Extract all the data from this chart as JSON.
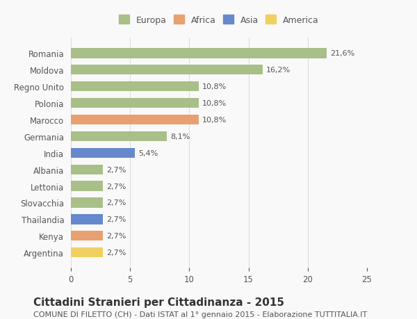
{
  "categories": [
    "Argentina",
    "Kenya",
    "Thailandia",
    "Slovacchia",
    "Lettonia",
    "Albania",
    "India",
    "Germania",
    "Marocco",
    "Polonia",
    "Regno Unito",
    "Moldova",
    "Romania"
  ],
  "values": [
    2.7,
    2.7,
    2.7,
    2.7,
    2.7,
    2.7,
    5.4,
    8.1,
    10.8,
    10.8,
    10.8,
    16.2,
    21.6
  ],
  "labels": [
    "2,7%",
    "2,7%",
    "2,7%",
    "2,7%",
    "2,7%",
    "2,7%",
    "5,4%",
    "8,1%",
    "10,8%",
    "10,8%",
    "10,8%",
    "16,2%",
    "21,6%"
  ],
  "colors": [
    "#f0d060",
    "#e8a070",
    "#6688cc",
    "#a8bf88",
    "#a8bf88",
    "#a8bf88",
    "#6688cc",
    "#a8bf88",
    "#e8a070",
    "#a8bf88",
    "#a8bf88",
    "#a8bf88",
    "#a8bf88"
  ],
  "continent_colors": {
    "Europa": "#a8bf88",
    "Africa": "#e8a070",
    "Asia": "#6688cc",
    "America": "#f0d060"
  },
  "legend_labels": [
    "Europa",
    "Africa",
    "Asia",
    "America"
  ],
  "title": "Cittadini Stranieri per Cittadinanza - 2015",
  "subtitle": "COMUNE DI FILETTO (CH) - Dati ISTAT al 1° gennaio 2015 - Elaborazione TUTTITALIA.IT",
  "xlim": [
    0,
    25
  ],
  "xticks": [
    0,
    5,
    10,
    15,
    20,
    25
  ],
  "background_color": "#f9f9f9",
  "grid_color": "#dddddd",
  "bar_height": 0.6,
  "title_fontsize": 11,
  "subtitle_fontsize": 8,
  "label_fontsize": 8,
  "tick_fontsize": 8.5
}
